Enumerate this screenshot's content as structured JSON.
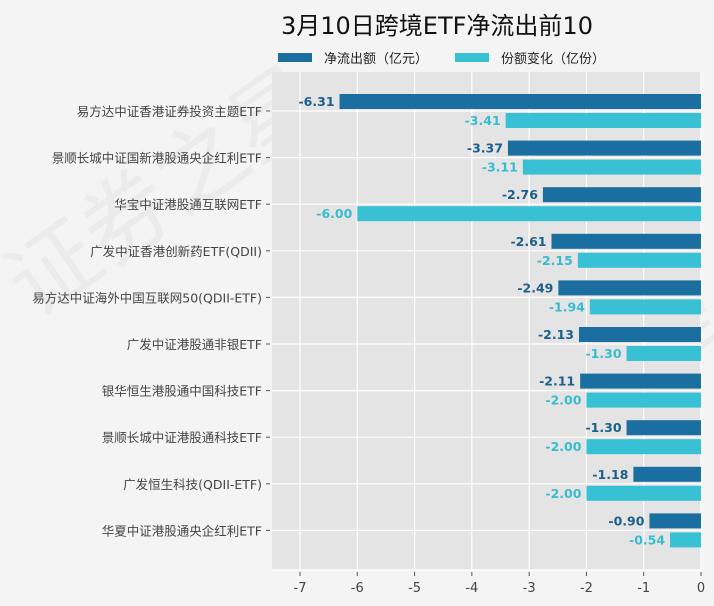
{
  "watermark": "证券之星",
  "chart_data": {
    "type": "bar",
    "orientation": "horizontal",
    "title": "3月10日跨境ETF净流出前10",
    "categories": [
      "易方达中证香港证券投资主题ETF",
      "景顺长城中证国新港股通央企红利ETF",
      "华宝中证港股通互联网ETF",
      "广发中证香港创新药ETF(QDII)",
      "易方达中证海外中国互联网50(QDII-ETF)",
      "广发中证港股通非银ETF",
      "银华恒生港股通中国科技ETF",
      "景顺长城中证港股通科技ETF",
      "广发恒生科技(QDII-ETF)",
      "华夏中证港股通央企红利ETF"
    ],
    "series": [
      {
        "name": "净流出额（亿元）",
        "color": "#1b6fa0",
        "values": [
          -6.31,
          -3.37,
          -2.76,
          -2.61,
          -2.49,
          -2.13,
          -2.11,
          -1.3,
          -1.18,
          -0.9
        ]
      },
      {
        "name": "份额变化（亿份）",
        "color": "#38c0d4",
        "values": [
          -3.41,
          -3.11,
          -6.0,
          -2.15,
          -1.94,
          -1.3,
          -2.0,
          -2.0,
          -2.0,
          -0.54
        ]
      }
    ],
    "xticks": [
      "-7",
      "-6",
      "-5",
      "-4",
      "-3",
      "-2",
      "-1",
      "0"
    ],
    "xlim": [
      -7,
      0
    ],
    "grid": true,
    "legend": "top"
  }
}
